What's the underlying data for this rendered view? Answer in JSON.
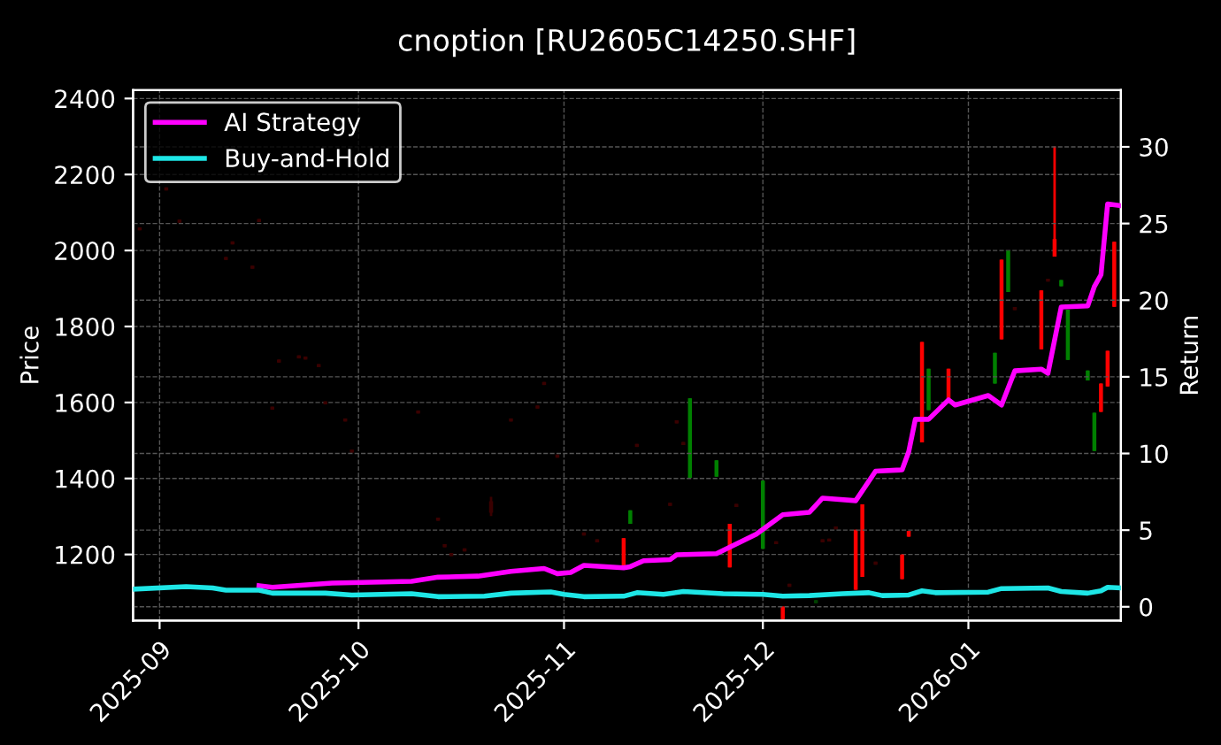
{
  "chart_data": {
    "type": "candlestick",
    "title": "cnoption [RU2605C14250.SHF]",
    "ylabel": "Price",
    "y2label": "Return",
    "x": [
      "2025-08-29",
      "2025-09-02",
      "2025-09-04",
      "2025-09-11",
      "2025-09-12",
      "2025-09-15",
      "2025-09-16",
      "2025-09-18",
      "2025-09-19",
      "2025-09-22",
      "2025-09-23",
      "2025-09-25",
      "2025-09-26",
      "2025-09-29",
      "2025-09-30",
      "2025-10-10",
      "2025-10-13",
      "2025-10-14",
      "2025-10-15",
      "2025-10-17",
      "2025-10-21",
      "2025-10-24",
      "2025-10-28",
      "2025-10-29",
      "2025-10-31",
      "2025-11-04",
      "2025-11-06",
      "2025-11-10",
      "2025-11-11",
      "2025-11-12",
      "2025-11-17",
      "2025-11-18",
      "2025-11-19",
      "2025-11-20",
      "2025-11-24",
      "2025-11-26",
      "2025-11-27",
      "2025-12-01",
      "2025-12-03",
      "2025-12-04",
      "2025-12-05",
      "2025-12-09",
      "2025-12-10",
      "2025-12-11",
      "2025-12-12",
      "2025-12-15",
      "2025-12-16",
      "2025-12-18",
      "2025-12-22",
      "2025-12-23",
      "2025-12-25",
      "2025-12-26",
      "2025-12-29",
      "2026-01-05",
      "2026-01-06",
      "2026-01-07",
      "2026-01-08",
      "2026-01-12",
      "2026-01-13",
      "2026-01-14",
      "2026-01-15",
      "2026-01-16",
      "2026-01-19",
      "2026-01-20",
      "2026-01-21",
      "2026-01-22",
      "2026-01-23"
    ],
    "ohlc": [
      [
        2053,
        2061,
        2053,
        2061
      ],
      [
        2158,
        2166,
        2158,
        2166
      ],
      [
        2073,
        2081,
        2073,
        2081
      ],
      [
        1975,
        1983,
        1975,
        1983
      ],
      [
        2016,
        2024,
        2016,
        2024
      ],
      [
        1952,
        1960,
        1952,
        1960
      ],
      [
        2075,
        2083,
        2075,
        2083
      ],
      [
        1581,
        1589,
        1581,
        1589
      ],
      [
        1705,
        1713,
        1705,
        1713
      ],
      [
        1716,
        1724,
        1716,
        1724
      ],
      [
        1713,
        1721,
        1713,
        1721
      ],
      [
        1693,
        1701,
        1693,
        1701
      ],
      [
        1595,
        1603,
        1595,
        1603
      ],
      [
        1550,
        1558,
        1550,
        1558
      ],
      [
        1468,
        1476,
        1468,
        1476
      ],
      [
        1571,
        1579,
        1571,
        1579
      ],
      [
        1289,
        1297,
        1289,
        1297
      ],
      [
        1219,
        1227,
        1219,
        1227
      ],
      [
        1196,
        1204,
        1196,
        1204
      ],
      [
        1208,
        1216,
        1208,
        1216
      ],
      [
        1310,
        1352,
        1301,
        1340
      ],
      [
        1550,
        1558,
        1550,
        1558
      ],
      [
        1584,
        1592,
        1584,
        1592
      ],
      [
        1646,
        1654,
        1646,
        1654
      ],
      [
        1455,
        1463,
        1455,
        1463
      ],
      [
        1250,
        1258,
        1250,
        1258
      ],
      [
        1232,
        1240,
        1232,
        1240
      ],
      [
        1169,
        1243,
        1169,
        1243
      ],
      [
        1316,
        1316,
        1281,
        1281
      ],
      [
        1483,
        1491,
        1483,
        1491
      ],
      [
        1328,
        1336,
        1328,
        1336
      ],
      [
        1545,
        1553,
        1545,
        1553
      ],
      [
        1488,
        1496,
        1488,
        1496
      ],
      [
        1611,
        1611,
        1402,
        1402
      ],
      [
        1448,
        1448,
        1405,
        1405
      ],
      [
        1166,
        1281,
        1166,
        1281
      ],
      [
        1325,
        1333,
        1325,
        1333
      ],
      [
        1394,
        1394,
        1215,
        1215
      ],
      [
        1227,
        1235,
        1227,
        1235
      ],
      [
        1030,
        1063,
        1030,
        1063
      ],
      [
        1115,
        1123,
        1115,
        1123
      ],
      [
        1080,
        1080,
        1072,
        1072
      ],
      [
        1232,
        1240,
        1232,
        1240
      ],
      [
        1234,
        1242,
        1234,
        1242
      ],
      [
        1266,
        1274,
        1266,
        1274
      ],
      [
        1107,
        1265,
        1107,
        1265
      ],
      [
        1141,
        1332,
        1141,
        1332
      ],
      [
        1173,
        1181,
        1173,
        1181
      ],
      [
        1135,
        1200,
        1135,
        1200
      ],
      [
        1247,
        1262,
        1247,
        1262
      ],
      [
        1495,
        1759,
        1495,
        1759
      ],
      [
        1689,
        1689,
        1580,
        1580
      ],
      [
        1611,
        1689,
        1611,
        1689
      ],
      [
        1731,
        1731,
        1650,
        1650
      ],
      [
        1766,
        1976,
        1766,
        1976
      ],
      [
        1999,
        1999,
        1891,
        1891
      ],
      [
        1843,
        1851,
        1843,
        1851
      ],
      [
        1740,
        1895,
        1740,
        1895
      ],
      [
        1918,
        1926,
        1918,
        1926
      ],
      [
        1984,
        2274,
        1984,
        2030
      ],
      [
        1922,
        1922,
        1906,
        1906
      ],
      [
        1844,
        1844,
        1712,
        1712
      ],
      [
        1684,
        1684,
        1658,
        1658
      ],
      [
        1573,
        1573,
        1472,
        1472
      ],
      [
        1575,
        1650,
        1575,
        1650
      ],
      [
        1642,
        1736,
        1642,
        1736
      ],
      [
        1852,
        2023,
        1852,
        2023
      ]
    ],
    "colors": [
      "#3a0000",
      "#3a0000",
      "#3a0000",
      "#3a0000",
      "#3a0000",
      "#3a0000",
      "#3a0000",
      "#3a0000",
      "#3a0000",
      "#3a0000",
      "#3a0000",
      "#3a0000",
      "#3a0000",
      "#3a0000",
      "#3a0000",
      "#3a0000",
      "#3a0000",
      "#3a0000",
      "#3a0000",
      "#3a0000",
      "#3a0000",
      "#3a0000",
      "#3a0000",
      "#3a0000",
      "#3a0000",
      "#3a0000",
      "#3a0000",
      "#ff0000",
      "#008000",
      "#3a0000",
      "#3a0000",
      "#3a0000",
      "#3a0000",
      "#008000",
      "#008000",
      "#ff0000",
      "#3a0000",
      "#008000",
      "#3a0000",
      "#ff0000",
      "#3a0000",
      "#004000",
      "#3a0000",
      "#3a0000",
      "#3a0000",
      "#ff0000",
      "#ff0000",
      "#3a0000",
      "#ff0000",
      "#ff0000",
      "#ff0000",
      "#008000",
      "#ff0000",
      "#008000",
      "#ff0000",
      "#008000",
      "#3a0000",
      "#ff0000",
      "#3a0000",
      "#ff0000",
      "#008000",
      "#008000",
      "#008000",
      "#008000",
      "#ff0000",
      "#ff0000",
      "#ff0000"
    ],
    "series": [
      {
        "name": "AI Strategy",
        "type": "line",
        "axis": "y2",
        "color": "#ff00ff",
        "x": [
          "2025-09-16",
          "2025-09-18",
          "2025-09-27",
          "2025-10-09",
          "2025-10-13",
          "2025-10-19",
          "2025-10-24",
          "2025-10-29",
          "2025-10-31",
          "2025-11-02",
          "2025-11-04",
          "2025-11-10",
          "2025-11-11",
          "2025-11-13",
          "2025-11-17",
          "2025-11-18",
          "2025-11-24",
          "2025-11-30",
          "2025-12-04",
          "2025-12-08",
          "2025-12-10",
          "2025-12-15",
          "2025-12-18",
          "2025-12-22",
          "2025-12-23",
          "2025-12-24",
          "2025-12-26",
          "2025-12-29",
          "2025-12-30",
          "2026-01-04",
          "2026-01-06",
          "2026-01-08",
          "2026-01-12",
          "2026-01-13",
          "2026-01-15",
          "2026-01-19",
          "2026-01-20",
          "2026-01-21",
          "2026-01-22",
          "2026-01-24"
        ],
        "values": [
          1.38,
          1.27,
          1.55,
          1.66,
          1.93,
          2.0,
          2.31,
          2.5,
          2.16,
          2.24,
          2.7,
          2.54,
          2.62,
          3.0,
          3.08,
          3.39,
          3.46,
          4.73,
          6.0,
          6.16,
          7.09,
          6.92,
          8.85,
          8.93,
          10.12,
          12.23,
          12.23,
          13.5,
          13.16,
          13.78,
          13.16,
          15.39,
          15.5,
          15.23,
          19.55,
          19.62,
          20.89,
          21.66,
          26.28,
          26.16
        ]
      },
      {
        "name": "Buy-and-Hold",
        "type": "line",
        "axis": "y2",
        "color": "#1ee6e6",
        "x": [
          "2025-08-28",
          "2025-09-05",
          "2025-09-09",
          "2025-09-11",
          "2025-09-16",
          "2025-09-18",
          "2025-09-26",
          "2025-09-30",
          "2025-10-09",
          "2025-10-13",
          "2025-10-20",
          "2025-10-24",
          "2025-10-30",
          "2025-11-01",
          "2025-11-04",
          "2025-11-10",
          "2025-11-12",
          "2025-11-16",
          "2025-11-19",
          "2025-11-25",
          "2025-12-01",
          "2025-12-04",
          "2025-12-08",
          "2025-12-13",
          "2025-12-17",
          "2025-12-19",
          "2025-12-23",
          "2025-12-25",
          "2025-12-27",
          "2026-01-04",
          "2026-01-06",
          "2026-01-13",
          "2026-01-15",
          "2026-01-19",
          "2026-01-21",
          "2026-01-22",
          "2026-01-24"
        ],
        "values": [
          1.15,
          1.31,
          1.23,
          1.08,
          1.08,
          0.89,
          0.89,
          0.77,
          0.85,
          0.66,
          0.69,
          0.89,
          0.97,
          0.81,
          0.66,
          0.69,
          0.92,
          0.81,
          1.0,
          0.85,
          0.81,
          0.69,
          0.73,
          0.85,
          0.92,
          0.73,
          0.77,
          1.04,
          0.92,
          0.96,
          1.19,
          1.23,
          1.0,
          0.89,
          1.04,
          1.27,
          1.23
        ]
      }
    ],
    "xlim": [
      "2025-08-28",
      "2026-01-24"
    ],
    "xticks": [
      {
        "value": "2025-09-01",
        "label": "2025-09"
      },
      {
        "value": "2025-10-01",
        "label": "2025-10"
      },
      {
        "value": "2025-11-01",
        "label": "2025-11"
      },
      {
        "value": "2025-12-01",
        "label": "2025-12"
      },
      {
        "value": "2026-01-01",
        "label": "2026-01"
      }
    ],
    "ylim": [
      1026,
      2422
    ],
    "yticks": [
      1200,
      1400,
      1600,
      1800,
      2000,
      2200,
      2400
    ],
    "y2lim": [
      -0.9,
      33.7
    ],
    "y2ticks": [
      0,
      5,
      10,
      15,
      20,
      25,
      30
    ],
    "grid": true,
    "legend": "top left",
    "line_style": "solid"
  }
}
